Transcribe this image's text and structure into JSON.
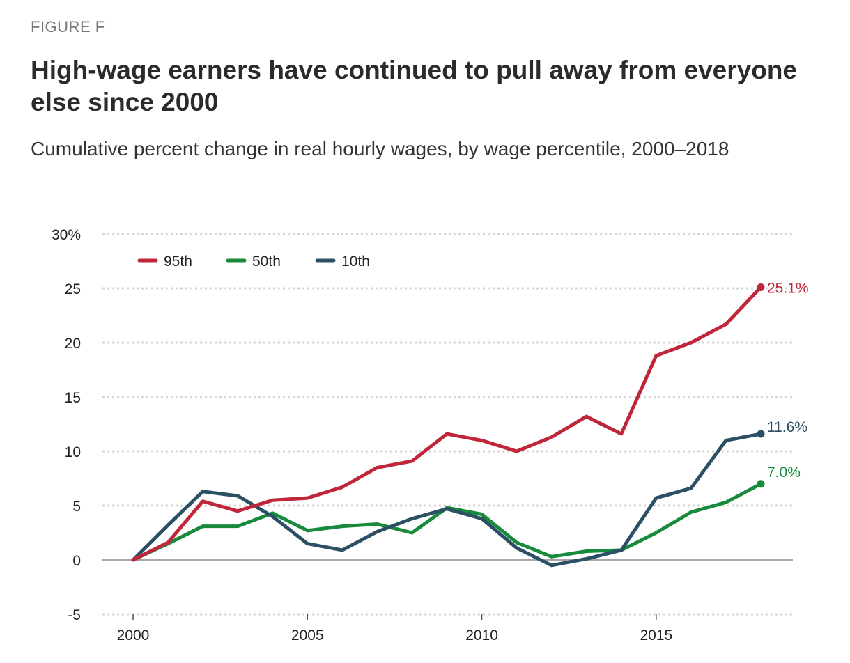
{
  "figure_label": "FIGURE F",
  "title": "High-wage earners have continued to pull away from everyone else since 2000",
  "subtitle": "Cumulative percent change in real hourly wages, by wage percentile, 2000–2018",
  "chart_data": {
    "type": "line",
    "x": [
      2000,
      2001,
      2002,
      2003,
      2004,
      2005,
      2006,
      2007,
      2008,
      2009,
      2010,
      2011,
      2012,
      2013,
      2014,
      2015,
      2016,
      2017,
      2018
    ],
    "series": [
      {
        "name": "95th",
        "color": "#c0263a",
        "values": [
          0,
          1.6,
          5.4,
          4.5,
          5.5,
          5.7,
          6.7,
          8.5,
          9.1,
          11.6,
          11.0,
          10.0,
          11.3,
          13.2,
          11.6,
          18.8,
          20.0,
          21.7,
          25.1
        ],
        "end_label": "25.1%"
      },
      {
        "name": "50th",
        "color": "#178a3b",
        "values": [
          0,
          1.5,
          3.1,
          3.1,
          4.3,
          2.7,
          3.1,
          3.3,
          2.5,
          4.8,
          4.2,
          1.6,
          0.3,
          0.8,
          0.9,
          2.5,
          4.4,
          5.3,
          7.0
        ],
        "end_label": "7.0%"
      },
      {
        "name": "10th",
        "color": "#2b4f63",
        "values": [
          0,
          3.2,
          6.3,
          5.9,
          4.0,
          1.5,
          0.9,
          2.6,
          3.8,
          4.7,
          3.8,
          1.1,
          -0.5,
          0.1,
          0.9,
          5.7,
          6.6,
          11.0,
          11.6
        ],
        "end_label": "11.6%"
      }
    ],
    "y_ticks": [
      {
        "value": 30,
        "label": "30%"
      },
      {
        "value": 25,
        "label": "25"
      },
      {
        "value": 20,
        "label": "20"
      },
      {
        "value": 15,
        "label": "15"
      },
      {
        "value": 10,
        "label": "10"
      },
      {
        "value": 5,
        "label": "5"
      },
      {
        "value": 0,
        "label": "0"
      },
      {
        "value": -5,
        "label": "-5"
      }
    ],
    "x_ticks": [
      2000,
      2005,
      2010,
      2015
    ],
    "ylim": [
      -5,
      30
    ],
    "xlim": [
      2000,
      2018
    ],
    "grid": "dotted horizontal",
    "legend_position": "top-left",
    "xlabel": "",
    "ylabel": ""
  }
}
